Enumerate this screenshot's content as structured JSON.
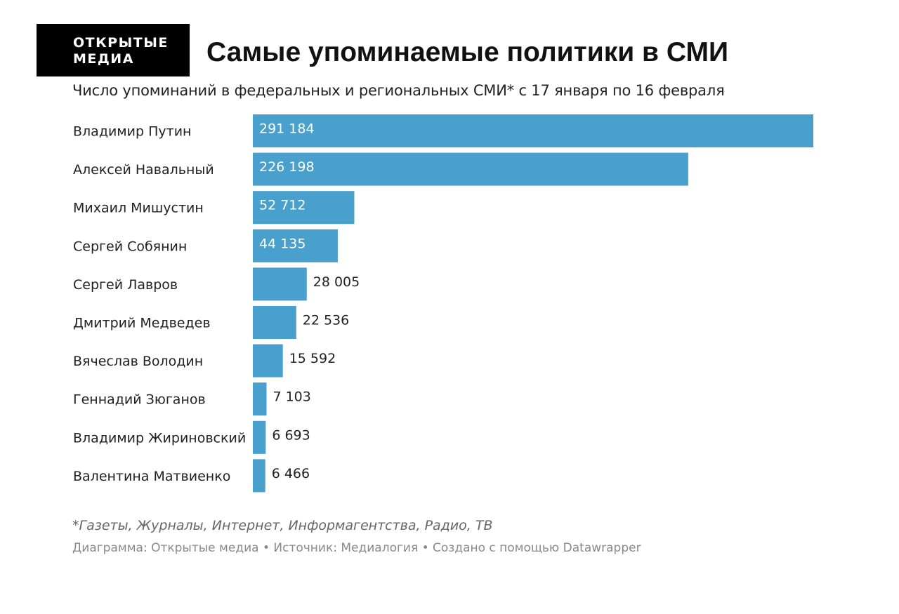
{
  "logo": {
    "line1": "ОТКРЫТЫЕ",
    "line2": "МЕДИА"
  },
  "header": {
    "title": "Самые упоминаемые политики в СМИ",
    "subtitle": "Число упоминаний в федеральных и региональных СМИ* с 17 января по 16 февраля"
  },
  "chart_data": {
    "type": "bar",
    "orientation": "horizontal",
    "title": "Самые упоминаемые политики в СМИ",
    "subtitle": "Число упоминаний в федеральных и региональных СМИ* с 17 января по 16 февраля",
    "categories": [
      "Владимир Путин",
      "Алексей Навальный",
      "Михаил Мишустин",
      "Сергей Собянин",
      "Сергей Лавров",
      "Дмитрий Медведев",
      "Вячеслав Володин",
      "Геннадий Зюганов",
      "Владимир Жириновский",
      "Валентина Матвиенко"
    ],
    "values": [
      291184,
      226198,
      52712,
      44135,
      28005,
      22536,
      15592,
      7103,
      6693,
      6466
    ],
    "value_labels": [
      "291 184",
      "226 198",
      "52 712",
      "44 135",
      "28 005",
      "22 536",
      "15 592",
      "7 103",
      "6 693",
      "6 466"
    ],
    "xlim": [
      0,
      291184
    ],
    "grid": false,
    "legend": "none",
    "bar_color": "#4aa0cd"
  },
  "footer": {
    "note": "*Газеты, Журналы, Интернет, Информагентства, Радио, ТВ",
    "credits": "Диаграмма: Открытые медиа • Источник: Медиалогия • Создано с помощью Datawrapper"
  }
}
